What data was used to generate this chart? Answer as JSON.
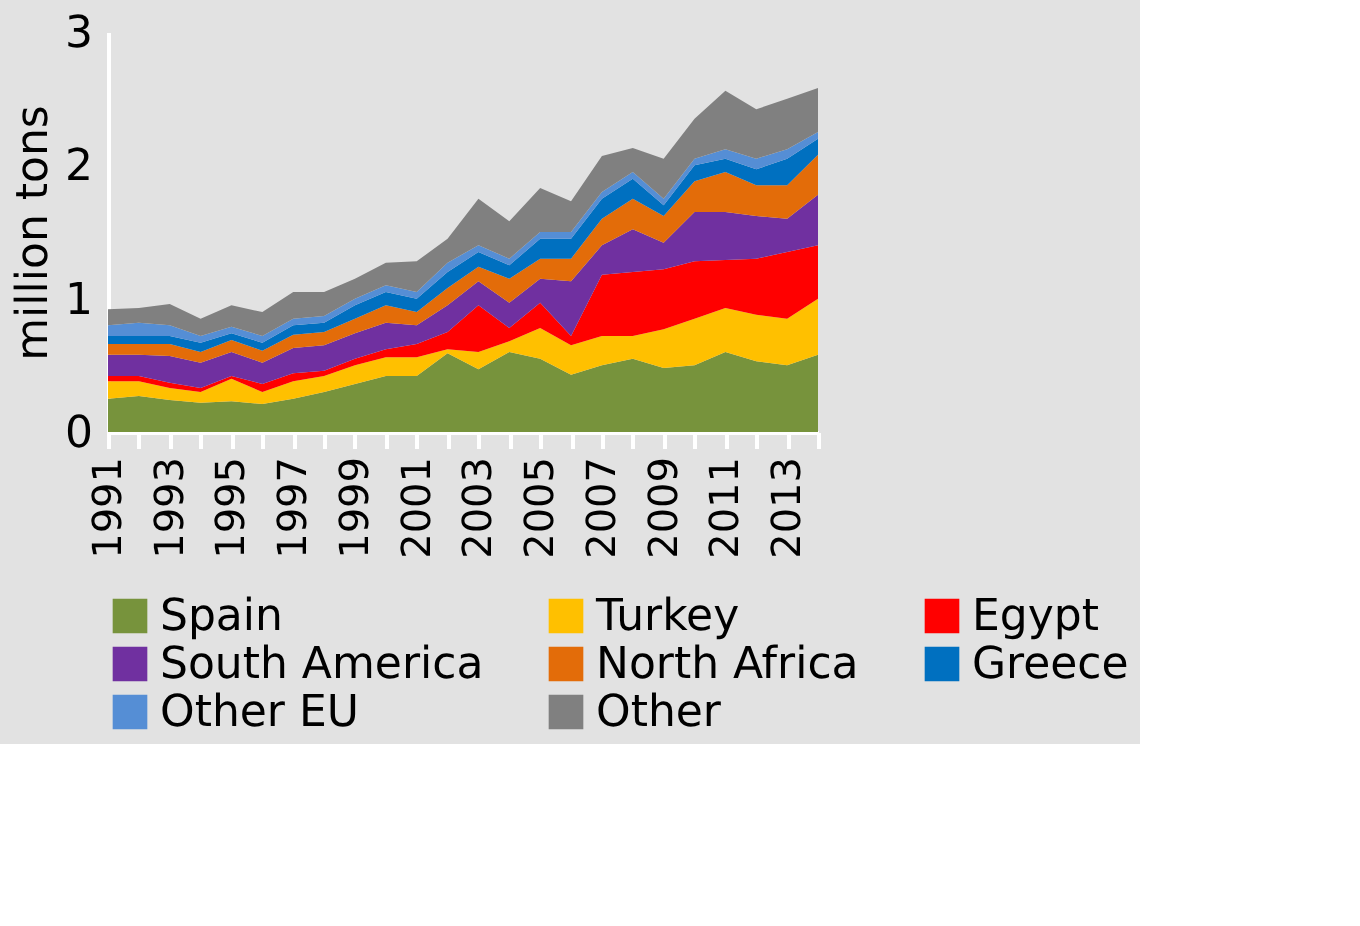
{
  "chart_data": {
    "type": "area",
    "stacked": true,
    "ylabel": "million tons",
    "x": [
      1991,
      1992,
      1993,
      1994,
      1995,
      1996,
      1997,
      1998,
      1999,
      2000,
      2001,
      2002,
      2003,
      2004,
      2005,
      2006,
      2007,
      2008,
      2009,
      2010,
      2011,
      2012,
      2013,
      2014
    ],
    "xlim": [
      1991,
      2014
    ],
    "xticks": [
      1991,
      {
        "value": 1992,
        "label": null
      },
      1993,
      {
        "value": 1994,
        "label": null
      },
      1995,
      {
        "value": 1996,
        "label": null
      },
      1997,
      {
        "value": 1998,
        "label": null
      },
      1999,
      {
        "value": 2000,
        "label": null
      },
      2001,
      {
        "value": 2002,
        "label": null
      },
      2003,
      {
        "value": 2004,
        "label": null
      },
      2005,
      {
        "value": 2006,
        "label": null
      },
      2007,
      {
        "value": 2008,
        "label": null
      },
      2009,
      {
        "value": 2010,
        "label": null
      },
      2011,
      {
        "value": 2012,
        "label": null
      },
      2013,
      {
        "value": 2014,
        "label": null
      }
    ],
    "ylim": [
      0,
      3
    ],
    "yticks": [
      0,
      1,
      2,
      3
    ],
    "legend": "bottom",
    "series": [
      {
        "name": "Spain",
        "color": "#77933c",
        "values": [
          0.25,
          0.27,
          0.24,
          0.22,
          0.23,
          0.21,
          0.25,
          0.3,
          0.36,
          0.42,
          0.42,
          0.59,
          0.47,
          0.6,
          0.55,
          0.43,
          0.5,
          0.55,
          0.48,
          0.5,
          0.6,
          0.53,
          0.5,
          0.58
        ]
      },
      {
        "name": "Turkey",
        "color": "#ffc000",
        "values": [
          0.13,
          0.11,
          0.09,
          0.08,
          0.17,
          0.09,
          0.13,
          0.12,
          0.14,
          0.14,
          0.14,
          0.03,
          0.13,
          0.08,
          0.23,
          0.22,
          0.22,
          0.17,
          0.29,
          0.35,
          0.33,
          0.35,
          0.35,
          0.42
        ]
      },
      {
        "name": "Egypt",
        "color": "#ff0000",
        "values": [
          0.04,
          0.04,
          0.04,
          0.03,
          0.02,
          0.06,
          0.06,
          0.04,
          0.05,
          0.06,
          0.1,
          0.13,
          0.35,
          0.1,
          0.19,
          0.07,
          0.46,
          0.48,
          0.45,
          0.43,
          0.36,
          0.42,
          0.5,
          0.4
        ]
      },
      {
        "name": "South America",
        "color": "#7030a0",
        "values": [
          0.16,
          0.16,
          0.2,
          0.19,
          0.18,
          0.16,
          0.19,
          0.19,
          0.19,
          0.2,
          0.14,
          0.2,
          0.18,
          0.19,
          0.18,
          0.41,
          0.22,
          0.32,
          0.2,
          0.37,
          0.36,
          0.32,
          0.25,
          0.38
        ]
      },
      {
        "name": "North Africa",
        "color": "#e36c09",
        "values": [
          0.08,
          0.08,
          0.09,
          0.08,
          0.09,
          0.09,
          0.1,
          0.1,
          0.11,
          0.13,
          0.1,
          0.13,
          0.11,
          0.18,
          0.15,
          0.17,
          0.2,
          0.23,
          0.2,
          0.23,
          0.3,
          0.23,
          0.25,
          0.3
        ]
      },
      {
        "name": "Greece",
        "color": "#0070c0",
        "values": [
          0.06,
          0.06,
          0.06,
          0.07,
          0.05,
          0.06,
          0.07,
          0.07,
          0.1,
          0.1,
          0.1,
          0.12,
          0.11,
          0.1,
          0.15,
          0.15,
          0.15,
          0.15,
          0.08,
          0.12,
          0.1,
          0.12,
          0.2,
          0.12
        ]
      },
      {
        "name": "Other EU",
        "color": "#558ed5",
        "values": [
          0.08,
          0.1,
          0.08,
          0.05,
          0.05,
          0.05,
          0.05,
          0.05,
          0.05,
          0.05,
          0.05,
          0.07,
          0.05,
          0.05,
          0.05,
          0.05,
          0.05,
          0.05,
          0.05,
          0.05,
          0.07,
          0.08,
          0.07,
          0.05
        ]
      },
      {
        "name": "Other",
        "color": "#808080",
        "values": [
          0.12,
          0.11,
          0.16,
          0.13,
          0.16,
          0.18,
          0.2,
          0.18,
          0.15,
          0.17,
          0.23,
          0.18,
          0.35,
          0.28,
          0.33,
          0.23,
          0.27,
          0.18,
          0.3,
          0.3,
          0.44,
          0.37,
          0.38,
          0.33
        ]
      }
    ]
  }
}
